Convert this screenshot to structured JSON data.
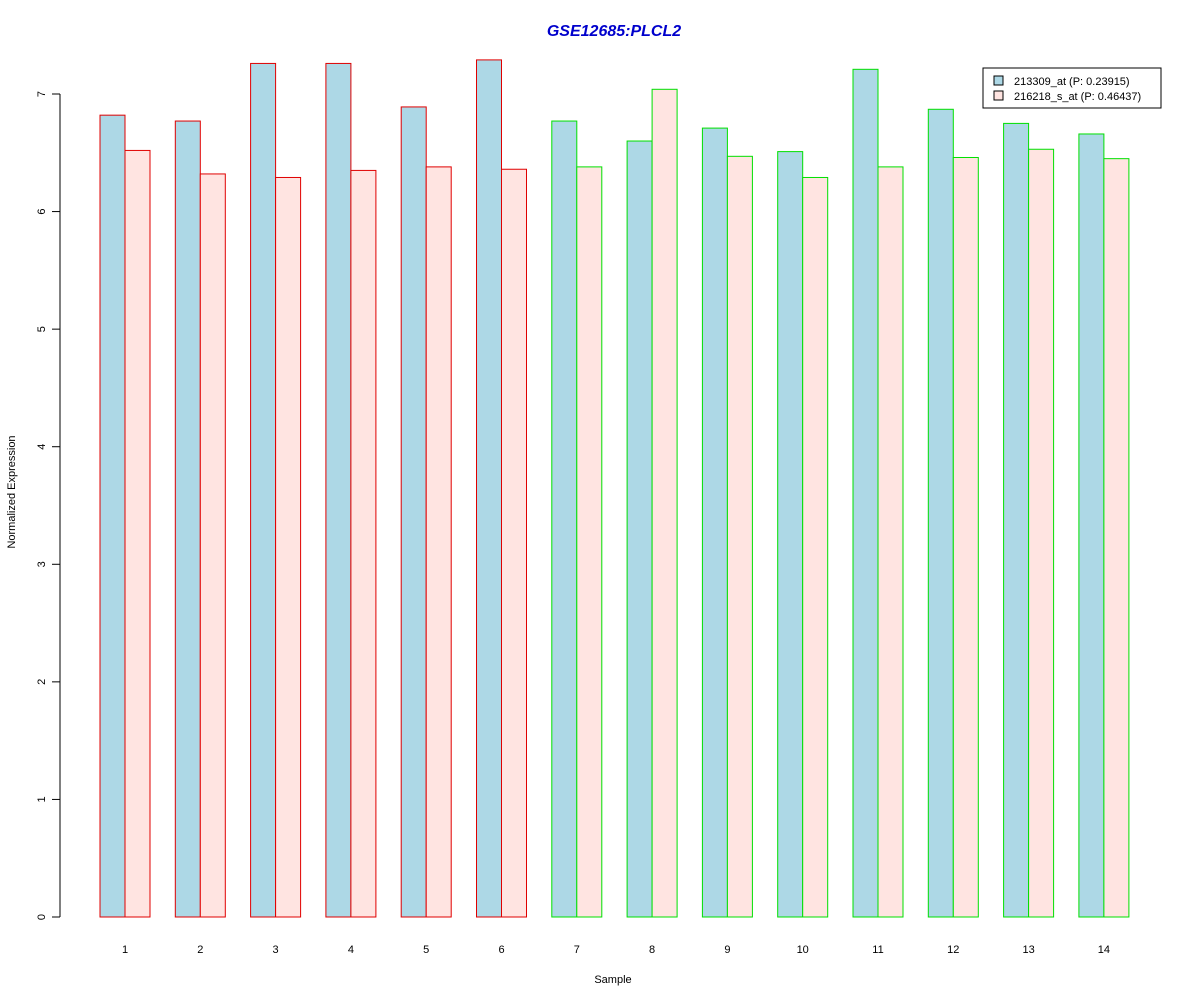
{
  "chart_data": {
    "type": "bar",
    "title": "GSE12685:PLCL2",
    "xlabel": "Sample",
    "ylabel": "Normalized Expression",
    "ylim": [
      0,
      7.3
    ],
    "yticks": [
      0,
      1,
      2,
      3,
      4,
      5,
      6,
      7
    ],
    "categories": [
      "1",
      "2",
      "3",
      "4",
      "5",
      "6",
      "7",
      "8",
      "9",
      "10",
      "11",
      "12",
      "13",
      "14"
    ],
    "group_border_colors": [
      "#e00000",
      "#e00000",
      "#e00000",
      "#e00000",
      "#e00000",
      "#e00000",
      "#00e000",
      "#00e000",
      "#00e000",
      "#00e000",
      "#00e000",
      "#00e000",
      "#00e000",
      "#00e000"
    ],
    "series": [
      {
        "name": "213309_at (P: 0.23915)",
        "fill": "#add8e6",
        "values": [
          6.82,
          6.77,
          7.26,
          7.26,
          6.89,
          7.29,
          6.77,
          6.6,
          6.71,
          6.51,
          7.21,
          6.87,
          6.75,
          6.66
        ]
      },
      {
        "name": "216218_s_at (P: 0.46437)",
        "fill": "#ffe4e1",
        "values": [
          6.52,
          6.32,
          6.29,
          6.35,
          6.38,
          6.36,
          6.38,
          7.04,
          6.47,
          6.29,
          6.38,
          6.46,
          6.53,
          6.45
        ]
      }
    ],
    "grid": false,
    "legend_position": "top-right",
    "colors": {
      "title": "#0000cc",
      "axis": "#000000"
    }
  }
}
